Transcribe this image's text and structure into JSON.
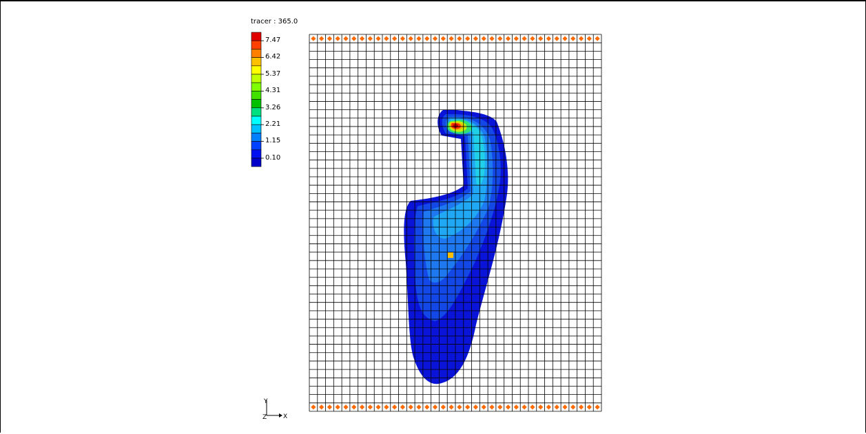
{
  "legend": {
    "title": "tracer : 365.0",
    "labels": [
      "7.47",
      "6.42",
      "5.37",
      "4.31",
      "3.26",
      "2.21",
      "1.15",
      "0.10"
    ],
    "colors": [
      "#e00000",
      "#ff4000",
      "#ff8000",
      "#ffc000",
      "#ffff00",
      "#c0ff00",
      "#80ff00",
      "#40e000",
      "#00c000",
      "#00e080",
      "#00ffff",
      "#00c0ff",
      "#0080ff",
      "#0040ff",
      "#0010f0",
      "#0000c8"
    ]
  },
  "axis": {
    "y_label": "Y",
    "z_label": "Z",
    "x_label": "X"
  },
  "grid": {
    "columns": 36,
    "rows": 45,
    "line_color": "#000000",
    "marker_color": "#ff6a00",
    "well_color": "#ffbf00"
  },
  "plume_colors": {
    "outer": "#0a14d8",
    "band2": "#1448e6",
    "band3": "#1e78f0",
    "band4": "#20a8f4",
    "band5": "#20d0e8",
    "band6": "#30e070",
    "band7": "#c8f000",
    "band8": "#ffb000",
    "band9": "#ff3000",
    "core": "#c00000"
  }
}
